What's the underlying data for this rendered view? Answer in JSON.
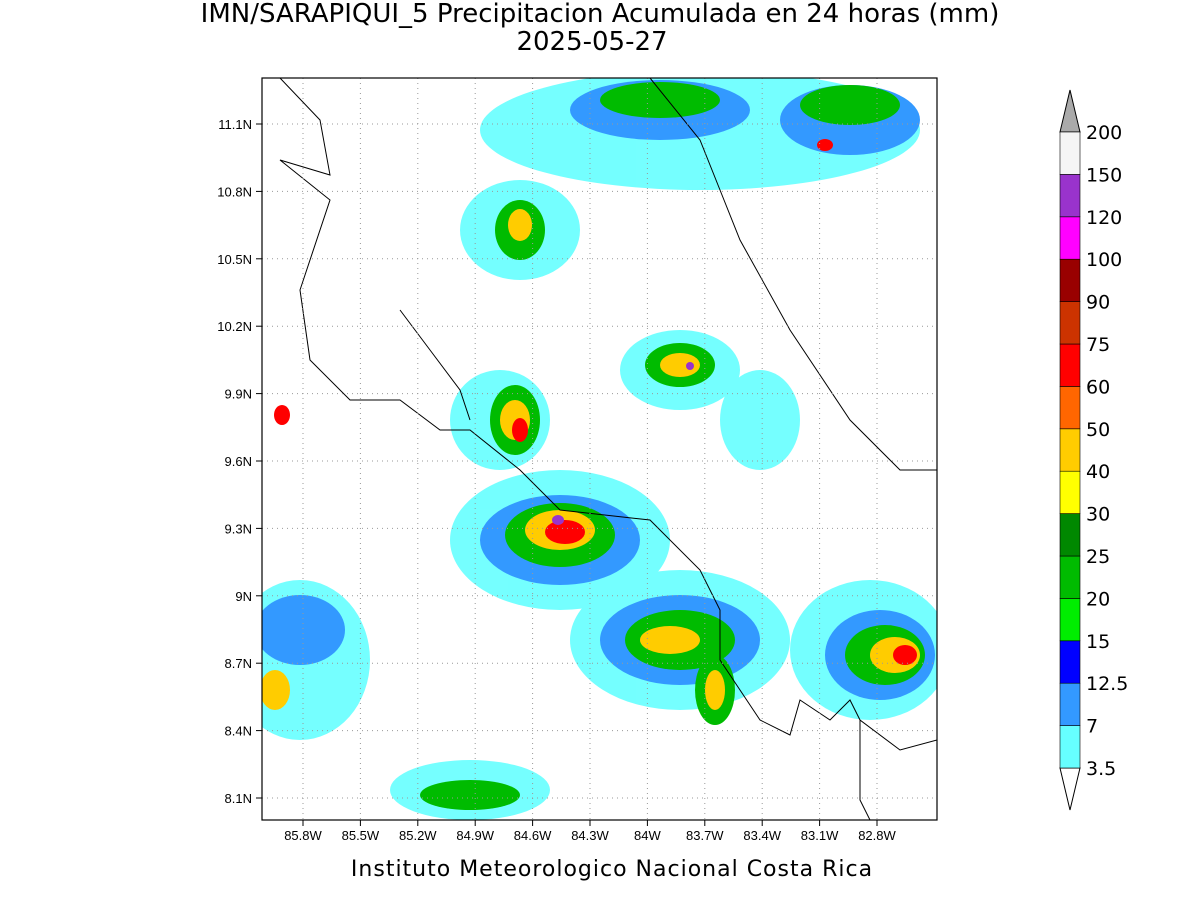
{
  "title": "IMN/SARAPIQUI_5 Precipitacion Acumulada en 24 horas (mm)",
  "date": "2025-05-27",
  "lat_labels": [
    "11.1N",
    "10.8N",
    "10.5N",
    "10.2N",
    "9.9N",
    "9.6N",
    "9.3N",
    "9N",
    "8.7N",
    "8.4N",
    "8.1N"
  ],
  "lon_labels": [
    "85.8W",
    "85.5W",
    "85.2W",
    "84.9W",
    "84.6W",
    "84.3W",
    "84W",
    "83.7W",
    "83.4W",
    "83.1W",
    "82.8W"
  ],
  "colorbar": {
    "levels": [
      3.5,
      7,
      12.5,
      15,
      20,
      25,
      30,
      40,
      50,
      60,
      75,
      90,
      100,
      120,
      150,
      200
    ],
    "colors": [
      "#66ffff",
      "#3399ff",
      "#0000ff",
      "#00ee00",
      "#00bb00",
      "#008800",
      "#ffff00",
      "#ffcc00",
      "#ff6600",
      "#ff0000",
      "#cc3300",
      "#990000",
      "#ff00ff",
      "#9933cc",
      "#f5f5f5"
    ],
    "under_color": "#ffffff",
    "over_color": "#aaaaaa"
  },
  "footer": "Instituto Meteorologico Nacional Costa Rica"
}
